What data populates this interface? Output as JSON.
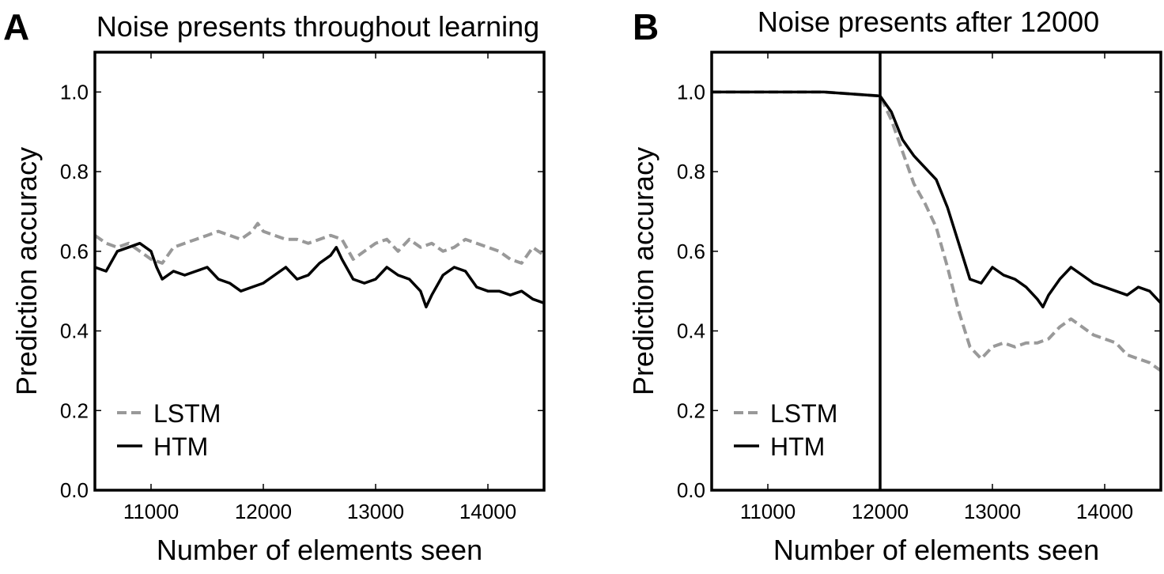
{
  "colors": {
    "lstm": "#999999",
    "htm": "#000000",
    "axes": "#000000"
  },
  "chart_data": [
    {
      "panel": "A",
      "type": "line",
      "title": "Noise presents throughout learning",
      "xlabel": "Number of elements seen",
      "ylabel": "Prediction accuracy",
      "xlim": [
        10500,
        14500
      ],
      "ylim": [
        0,
        1.1
      ],
      "xticks": [
        "11000",
        "12000",
        "13000",
        "14000"
      ],
      "yticks": [
        "0.0",
        "0.2",
        "0.4",
        "0.6",
        "0.8",
        "1.0"
      ],
      "legend": {
        "placement": "lower-left",
        "entries": [
          "LSTM",
          "HTM"
        ]
      },
      "series": [
        {
          "name": "LSTM",
          "style": "dashed",
          "color": "#999999",
          "x": [
            10500,
            10600,
            10700,
            10800,
            10900,
            11000,
            11100,
            11200,
            11300,
            11400,
            11500,
            11600,
            11700,
            11800,
            11900,
            11950,
            12000,
            12100,
            12200,
            12300,
            12400,
            12500,
            12600,
            12700,
            12800,
            12900,
            13000,
            13100,
            13200,
            13300,
            13400,
            13500,
            13600,
            13700,
            13800,
            13900,
            14000,
            14100,
            14200,
            14300,
            14400,
            14500
          ],
          "y": [
            0.64,
            0.62,
            0.61,
            0.62,
            0.6,
            0.58,
            0.57,
            0.61,
            0.62,
            0.63,
            0.64,
            0.65,
            0.64,
            0.63,
            0.65,
            0.67,
            0.65,
            0.64,
            0.63,
            0.63,
            0.62,
            0.63,
            0.64,
            0.63,
            0.58,
            0.6,
            0.62,
            0.63,
            0.6,
            0.63,
            0.61,
            0.62,
            0.6,
            0.61,
            0.63,
            0.62,
            0.61,
            0.6,
            0.58,
            0.57,
            0.61,
            0.59
          ]
        },
        {
          "name": "HTM",
          "style": "solid",
          "color": "#000000",
          "x": [
            10500,
            10600,
            10700,
            10800,
            10900,
            11000,
            11050,
            11100,
            11200,
            11300,
            11400,
            11500,
            11600,
            11700,
            11800,
            11900,
            12000,
            12100,
            12200,
            12300,
            12400,
            12500,
            12600,
            12650,
            12700,
            12800,
            12900,
            13000,
            13100,
            13200,
            13300,
            13400,
            13450,
            13500,
            13600,
            13700,
            13800,
            13900,
            14000,
            14100,
            14200,
            14300,
            14400,
            14500
          ],
          "y": [
            0.56,
            0.55,
            0.6,
            0.61,
            0.62,
            0.6,
            0.56,
            0.53,
            0.55,
            0.54,
            0.55,
            0.56,
            0.53,
            0.52,
            0.5,
            0.51,
            0.52,
            0.54,
            0.56,
            0.53,
            0.54,
            0.57,
            0.59,
            0.61,
            0.58,
            0.53,
            0.52,
            0.53,
            0.56,
            0.54,
            0.53,
            0.5,
            0.46,
            0.49,
            0.54,
            0.56,
            0.55,
            0.51,
            0.5,
            0.5,
            0.49,
            0.5,
            0.48,
            0.47
          ]
        }
      ]
    },
    {
      "panel": "B",
      "type": "line",
      "title": "Noise presents after 12000",
      "xlabel": "Number of elements seen",
      "ylabel": "Prediction accuracy",
      "xlim": [
        10500,
        14500
      ],
      "ylim": [
        0,
        1.1
      ],
      "xticks": [
        "11000",
        "12000",
        "13000",
        "14000"
      ],
      "yticks": [
        "0.0",
        "0.2",
        "0.4",
        "0.6",
        "0.8",
        "1.0"
      ],
      "vline_x": 12000,
      "legend": {
        "placement": "lower-left",
        "entries": [
          "LSTM",
          "HTM"
        ]
      },
      "series": [
        {
          "name": "LSTM",
          "style": "dashed",
          "color": "#999999",
          "x": [
            10500,
            11000,
            11500,
            12000,
            12100,
            12200,
            12300,
            12400,
            12500,
            12600,
            12700,
            12800,
            12900,
            13000,
            13100,
            13200,
            13300,
            13400,
            13500,
            13600,
            13700,
            13800,
            13900,
            14000,
            14100,
            14200,
            14300,
            14400,
            14500
          ],
          "y": [
            1.0,
            1.0,
            1.0,
            0.99,
            0.93,
            0.85,
            0.77,
            0.72,
            0.66,
            0.56,
            0.45,
            0.36,
            0.33,
            0.36,
            0.37,
            0.36,
            0.37,
            0.37,
            0.38,
            0.41,
            0.43,
            0.41,
            0.39,
            0.38,
            0.37,
            0.34,
            0.33,
            0.32,
            0.3
          ]
        },
        {
          "name": "HTM",
          "style": "solid",
          "color": "#000000",
          "x": [
            10500,
            11000,
            11500,
            12000,
            12100,
            12200,
            12300,
            12400,
            12500,
            12600,
            12700,
            12800,
            12900,
            13000,
            13100,
            13200,
            13300,
            13400,
            13450,
            13500,
            13600,
            13700,
            13800,
            13900,
            14000,
            14100,
            14200,
            14300,
            14400,
            14500
          ],
          "y": [
            1.0,
            1.0,
            1.0,
            0.99,
            0.95,
            0.88,
            0.84,
            0.81,
            0.78,
            0.71,
            0.62,
            0.53,
            0.52,
            0.56,
            0.54,
            0.53,
            0.51,
            0.48,
            0.46,
            0.49,
            0.53,
            0.56,
            0.54,
            0.52,
            0.51,
            0.5,
            0.49,
            0.51,
            0.5,
            0.47
          ]
        }
      ]
    }
  ]
}
